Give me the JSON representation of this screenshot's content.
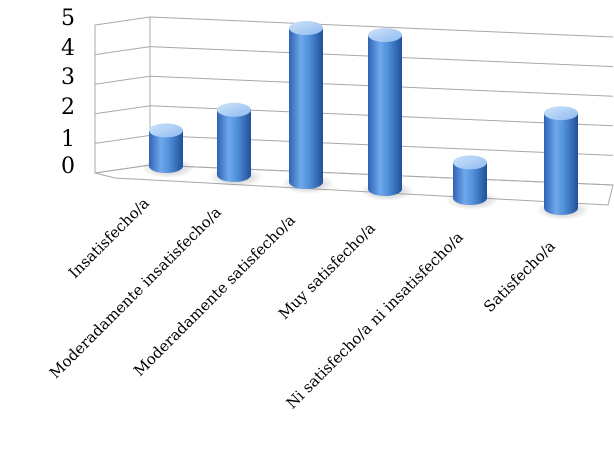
{
  "chart_data": {
    "type": "bar",
    "style": "3d-cylinder",
    "categories": [
      "Insatisfecho/a",
      "Moderadamente insatisfecho/a",
      "Moderadamente satisfecho/a",
      "Muy satisfecho/a",
      "Ni satisfecho/a ni insatisfecho/a",
      "Satisfecho/a"
    ],
    "values": [
      1,
      2,
      5,
      5,
      1,
      3
    ],
    "title": "",
    "xlabel": "",
    "ylabel": "",
    "ylim": [
      0,
      5
    ],
    "yticks": [
      "0",
      "1",
      "2",
      "3",
      "4",
      "5"
    ],
    "grid": true,
    "legend": "none",
    "bar_color": "#4f8fd8"
  }
}
